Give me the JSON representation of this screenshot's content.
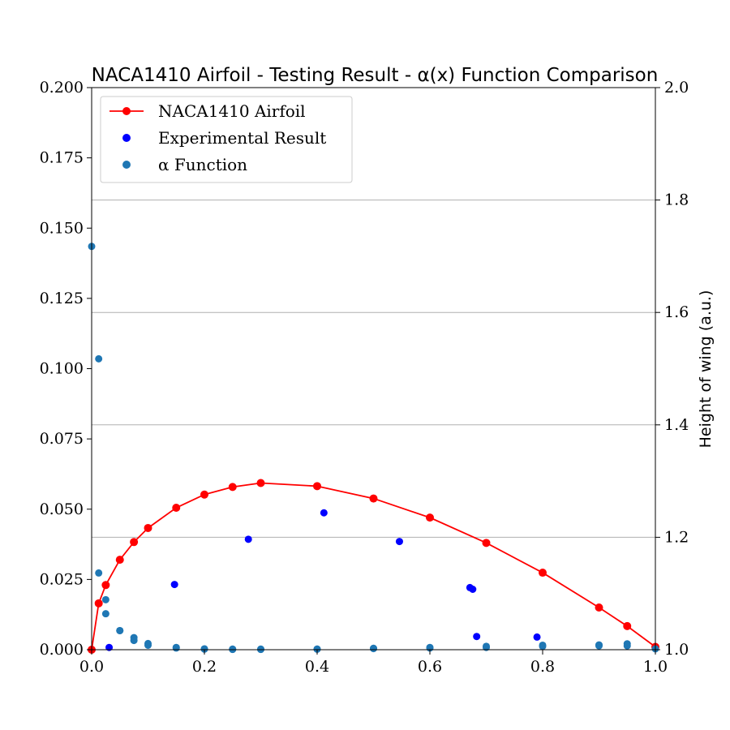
{
  "chart_data": {
    "type": "scatter",
    "title": "NACA1410 Airfoil - Testing Result - α(x) Function Comparison",
    "xlabel": "",
    "ylabel_left": "",
    "ylabel_right": "Height of wing (a.u.)",
    "xlim": [
      0.0,
      1.0
    ],
    "ylim_left": [
      0.0,
      0.2
    ],
    "ylim_right": [
      1.0,
      2.0
    ],
    "x_ticks": [
      "0.0",
      "0.2",
      "0.4",
      "0.6",
      "0.8",
      "1.0"
    ],
    "y_left_ticks": [
      "0.000",
      "0.025",
      "0.050",
      "0.075",
      "0.100",
      "0.125",
      "0.150",
      "0.175",
      "0.200"
    ],
    "y_right_ticks": [
      "1.0",
      "1.2",
      "1.4",
      "1.6",
      "1.8",
      "2.0"
    ],
    "grid": "horizontal lines at right-axis ticks",
    "legend_position": "upper-left",
    "legend": [
      "NACA1410 Airfoil",
      "Experimental Result",
      "α Function"
    ],
    "series": [
      {
        "name": "NACA1410 Airfoil",
        "kind": "line-with-markers",
        "color": "#ff0000",
        "axis": "left",
        "x": [
          0.0,
          0.0125,
          0.025,
          0.05,
          0.075,
          0.1,
          0.15,
          0.2,
          0.25,
          0.3,
          0.4,
          0.5,
          0.6,
          0.7,
          0.8,
          0.9,
          0.95,
          1.0
        ],
        "y": [
          0.0,
          0.0165,
          0.023,
          0.032,
          0.0383,
          0.0433,
          0.0505,
          0.0552,
          0.0579,
          0.0593,
          0.0582,
          0.0538,
          0.047,
          0.038,
          0.0274,
          0.015,
          0.0084,
          0.001
        ]
      },
      {
        "name": "Experimental Result",
        "kind": "scatter",
        "color": "#0000ff",
        "axis": "left",
        "x": [
          0.031,
          0.147,
          0.278,
          0.412,
          0.546,
          0.671,
          0.676,
          0.683,
          0.79
        ],
        "y": [
          0.0008,
          0.0232,
          0.0393,
          0.0487,
          0.0385,
          0.0221,
          0.0215,
          0.0047,
          0.0045
        ]
      },
      {
        "name": "α Function",
        "kind": "scatter",
        "color": "#1f77b4",
        "axis": "left",
        "x": [
          0.0,
          0.0125,
          0.0125,
          0.025,
          0.025,
          0.05,
          0.05,
          0.075,
          0.075,
          0.1,
          0.1,
          0.15,
          0.15,
          0.2,
          0.2,
          0.25,
          0.25,
          0.3,
          0.3,
          0.4,
          0.4,
          0.5,
          0.5,
          0.6,
          0.6,
          0.7,
          0.7,
          0.8,
          0.8,
          0.9,
          0.9,
          0.95,
          0.95,
          1.0
        ],
        "y": [
          0.1435,
          0.1035,
          0.0273,
          0.0178,
          0.0128,
          0.0068,
          0.0068,
          0.0043,
          0.0033,
          0.0022,
          0.0016,
          0.0008,
          0.0006,
          0.0003,
          0.0002,
          0.0002,
          0.0001,
          0.0002,
          0.0001,
          0.0002,
          0.0002,
          0.0005,
          0.0004,
          0.0008,
          0.0006,
          0.0012,
          0.0008,
          0.0016,
          0.0012,
          0.0017,
          0.0014,
          0.0021,
          0.0014,
          0.0003
        ]
      }
    ]
  }
}
